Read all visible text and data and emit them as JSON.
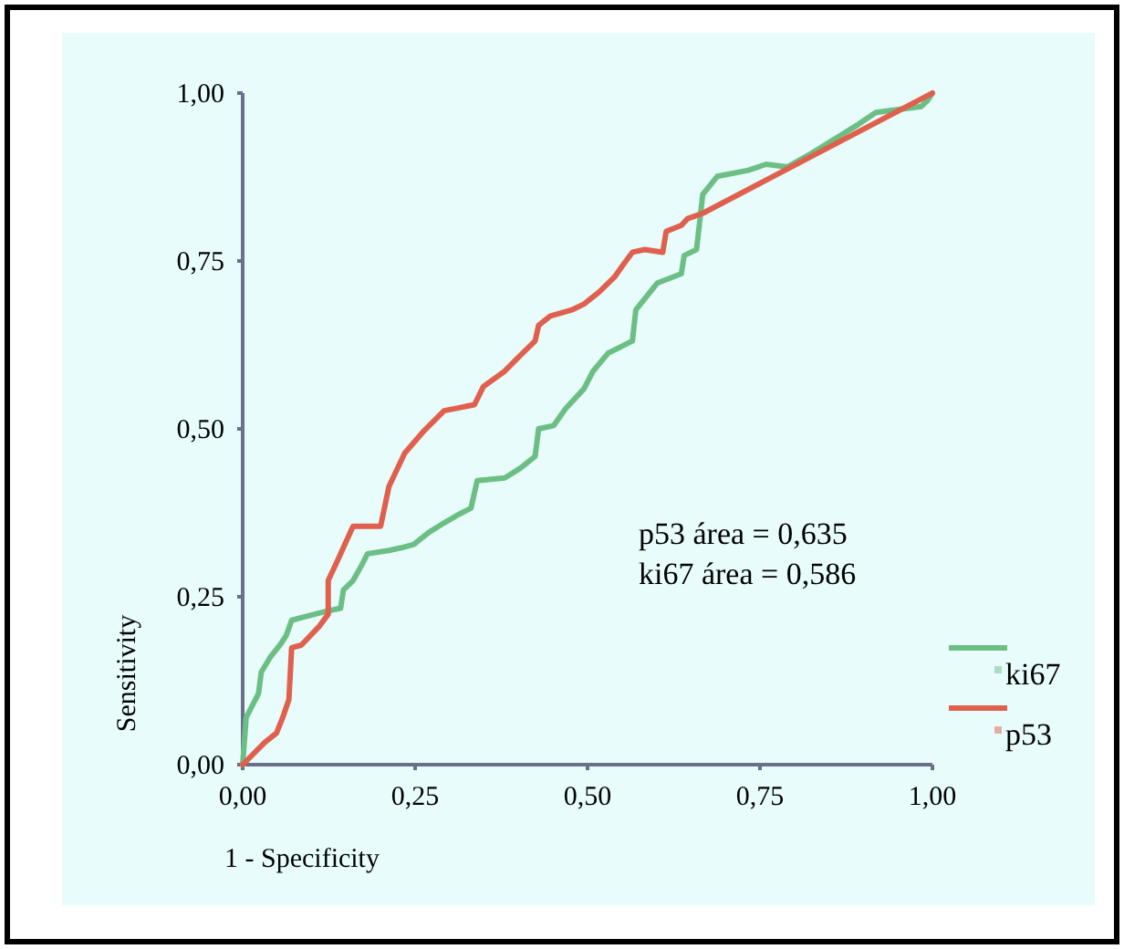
{
  "chart_data": {
    "type": "line",
    "xlabel": "1 - Specificity",
    "ylabel": "Sensitivity",
    "xlim": [
      0,
      1
    ],
    "ylim": [
      0,
      1
    ],
    "xticks": [
      {
        "value": 0,
        "label": "0,00"
      },
      {
        "value": 0.25,
        "label": "0,25"
      },
      {
        "value": 0.5,
        "label": "0,50"
      },
      {
        "value": 0.75,
        "label": "0,75"
      },
      {
        "value": 1,
        "label": "1,00"
      }
    ],
    "yticks": [
      {
        "value": 0,
        "label": "0,00"
      },
      {
        "value": 0.25,
        "label": "0,25"
      },
      {
        "value": 0.5,
        "label": "0,50"
      },
      {
        "value": 0.75,
        "label": "0,75"
      },
      {
        "value": 1,
        "label": "1,00"
      }
    ],
    "grid": false,
    "legend": "bottom right",
    "marker": "none",
    "line_style": "solid",
    "annotations": [
      "p53 área = 0,635",
      "ki67 área = 0,586"
    ],
    "series": [
      {
        "name": "ki67",
        "color": "#6cbf84",
        "x": [
          0,
          0.005,
          0.023,
          0.027,
          0.04,
          0.054,
          0.063,
          0.071,
          0.085,
          0.12,
          0.142,
          0.146,
          0.16,
          0.172,
          0.181,
          0.212,
          0.23,
          0.248,
          0.27,
          0.292,
          0.314,
          0.331,
          0.34,
          0.38,
          0.402,
          0.424,
          0.429,
          0.451,
          0.468,
          0.495,
          0.508,
          0.53,
          0.548,
          0.565,
          0.57,
          0.601,
          0.636,
          0.64,
          0.658,
          0.662,
          0.667,
          0.688,
          0.733,
          0.759,
          0.79,
          0.821,
          0.892,
          0.918,
          0.953,
          0.984,
          0.993,
          1
        ],
        "values": [
          0,
          0.07,
          0.106,
          0.138,
          0.16,
          0.178,
          0.192,
          0.215,
          0.219,
          0.228,
          0.233,
          0.26,
          0.274,
          0.296,
          0.314,
          0.319,
          0.323,
          0.328,
          0.346,
          0.36,
          0.373,
          0.382,
          0.423,
          0.427,
          0.441,
          0.459,
          0.5,
          0.505,
          0.53,
          0.56,
          0.586,
          0.613,
          0.622,
          0.631,
          0.677,
          0.717,
          0.731,
          0.758,
          0.767,
          0.803,
          0.849,
          0.876,
          0.885,
          0.894,
          0.89,
          0.908,
          0.953,
          0.971,
          0.976,
          0.98,
          0.989,
          1
        ]
      },
      {
        "name": "p53",
        "color": "#e0604e",
        "x": [
          0,
          0.032,
          0.049,
          0.058,
          0.067,
          0.071,
          0.085,
          0.111,
          0.124,
          0.124,
          0.138,
          0.16,
          0.2,
          0.212,
          0.235,
          0.261,
          0.292,
          0.336,
          0.349,
          0.38,
          0.402,
          0.424,
          0.429,
          0.446,
          0.477,
          0.495,
          0.517,
          0.539,
          0.552,
          0.565,
          0.583,
          0.609,
          0.614,
          0.636,
          0.645,
          0.667,
          0.812,
          1
        ],
        "values": [
          0,
          0.033,
          0.047,
          0.07,
          0.097,
          0.174,
          0.178,
          0.206,
          0.224,
          0.274,
          0.305,
          0.355,
          0.355,
          0.414,
          0.464,
          0.495,
          0.527,
          0.536,
          0.563,
          0.586,
          0.609,
          0.631,
          0.654,
          0.668,
          0.677,
          0.686,
          0.704,
          0.726,
          0.745,
          0.763,
          0.767,
          0.763,
          0.794,
          0.803,
          0.813,
          0.821,
          0.899,
          1
        ]
      }
    ]
  }
}
